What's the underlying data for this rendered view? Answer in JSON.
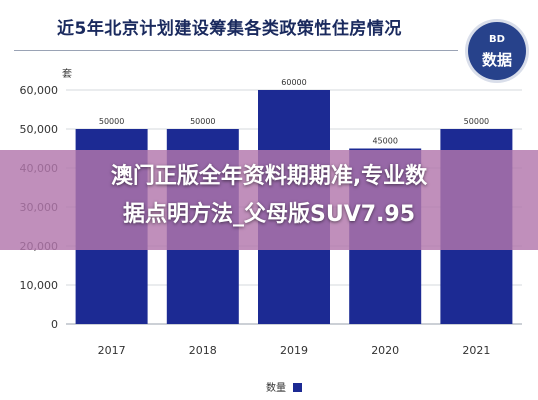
{
  "header": {
    "title": "近5年北京计划建设筹集各类政策性住房情况",
    "badge_line1": "BD",
    "badge_line2": "数据"
  },
  "overlay": {
    "line1": "澳门正版全年资料期期准,专业数",
    "line2": "据点明方法_父母版SUV7.95"
  },
  "colors": {
    "bar": "#1c2a93",
    "grid": "#d6d8de",
    "axis_text": "#333333"
  },
  "chart_data": {
    "type": "bar",
    "unit_label": "套",
    "categories": [
      "2017",
      "2018",
      "2019",
      "2020",
      "2021"
    ],
    "values": [
      50000,
      50000,
      60000,
      45000,
      50000
    ],
    "value_labels": [
      "50000",
      "50000",
      "60000",
      "45000",
      "50000"
    ],
    "yticks": [
      0,
      10000,
      20000,
      30000,
      40000,
      50000,
      60000
    ],
    "ytick_labels": [
      "0",
      "10,000",
      "20,000",
      "30,000",
      "40,000",
      "50,000",
      "60,000"
    ],
    "ylim": [
      0,
      60000
    ],
    "legend": {
      "label": "数量",
      "position": "bottom"
    },
    "grid": true
  }
}
